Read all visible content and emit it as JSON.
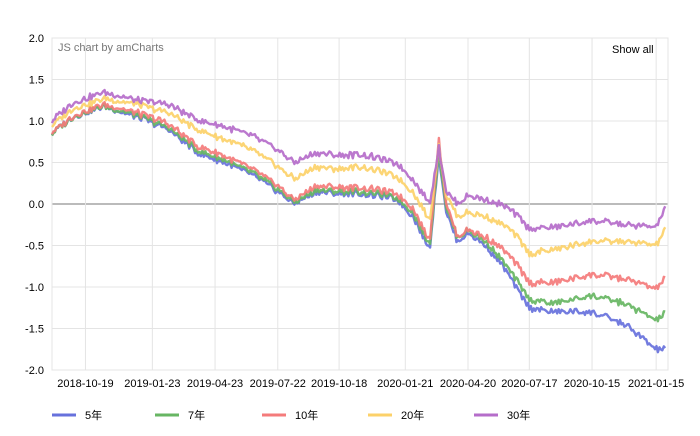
{
  "credit": "JS chart by amCharts",
  "show_all_label": "Show all",
  "colors": {
    "5年": "#6771dc",
    "7年": "#67b663",
    "10年": "#f47b7b",
    "20年": "#fcd169",
    "30年": "#b56dca",
    "grid": "#e4e4e4",
    "zero_line": "#777777"
  },
  "chart_data": {
    "type": "line",
    "title": "",
    "xlabel": "",
    "ylabel": "",
    "ylim": [
      -2.0,
      2.0
    ],
    "y_ticks": [
      "2.0",
      "1.5",
      "1.0",
      "0.5",
      "0.0",
      "-0.5",
      "-1.0",
      "-1.5",
      "-2.0"
    ],
    "x_ticks": [
      "2018-10-19",
      "2019-01-23",
      "2019-04-23",
      "2019-07-22",
      "2019-10-18",
      "2020-01-21",
      "2020-04-20",
      "2020-07-17",
      "2020-10-15",
      "2021-01-15"
    ],
    "xlim": [
      "2018-09-01",
      "2021-02-01"
    ],
    "grid": true,
    "legend_position": "bottom",
    "series": [
      {
        "name": "5年",
        "points": [
          [
            "2018-09-01",
            0.85
          ],
          [
            "2018-10-01",
            1.05
          ],
          [
            "2018-11-15",
            1.18
          ],
          [
            "2019-01-01",
            1.05
          ],
          [
            "2019-02-15",
            0.9
          ],
          [
            "2019-04-01",
            0.6
          ],
          [
            "2019-05-01",
            0.52
          ],
          [
            "2019-06-15",
            0.35
          ],
          [
            "2019-07-22",
            0.15
          ],
          [
            "2019-08-15",
            0.0
          ],
          [
            "2019-09-15",
            0.15
          ],
          [
            "2019-10-18",
            0.12
          ],
          [
            "2019-11-15",
            0.12
          ],
          [
            "2019-12-15",
            0.1
          ],
          [
            "2020-01-10",
            0.05
          ],
          [
            "2020-02-01",
            -0.15
          ],
          [
            "2020-02-25",
            -0.55
          ],
          [
            "2020-03-09",
            0.6
          ],
          [
            "2020-03-20",
            -0.1
          ],
          [
            "2020-04-05",
            -0.45
          ],
          [
            "2020-04-20",
            -0.35
          ],
          [
            "2020-05-15",
            -0.5
          ],
          [
            "2020-06-10",
            -0.75
          ],
          [
            "2020-07-01",
            -1.05
          ],
          [
            "2020-07-17",
            -1.25
          ],
          [
            "2020-08-20",
            -1.3
          ],
          [
            "2020-10-15",
            -1.3
          ],
          [
            "2020-12-01",
            -1.45
          ],
          [
            "2021-01-15",
            -1.75
          ],
          [
            "2021-01-28",
            -1.75
          ]
        ]
      },
      {
        "name": "7年",
        "points": [
          [
            "2018-09-01",
            0.85
          ],
          [
            "2018-10-01",
            1.05
          ],
          [
            "2018-11-15",
            1.18
          ],
          [
            "2019-01-01",
            1.07
          ],
          [
            "2019-02-15",
            0.92
          ],
          [
            "2019-04-01",
            0.63
          ],
          [
            "2019-05-01",
            0.55
          ],
          [
            "2019-06-15",
            0.38
          ],
          [
            "2019-07-22",
            0.18
          ],
          [
            "2019-08-15",
            0.02
          ],
          [
            "2019-09-15",
            0.17
          ],
          [
            "2019-10-18",
            0.15
          ],
          [
            "2019-11-15",
            0.15
          ],
          [
            "2019-12-15",
            0.12
          ],
          [
            "2020-01-10",
            0.07
          ],
          [
            "2020-02-01",
            -0.1
          ],
          [
            "2020-02-25",
            -0.5
          ],
          [
            "2020-03-09",
            0.65
          ],
          [
            "2020-03-20",
            -0.05
          ],
          [
            "2020-04-05",
            -0.4
          ],
          [
            "2020-04-20",
            -0.32
          ],
          [
            "2020-05-15",
            -0.45
          ],
          [
            "2020-06-10",
            -0.7
          ],
          [
            "2020-07-01",
            -0.95
          ],
          [
            "2020-07-17",
            -1.15
          ],
          [
            "2020-08-20",
            -1.2
          ],
          [
            "2020-10-15",
            -1.1
          ],
          [
            "2020-12-01",
            -1.2
          ],
          [
            "2021-01-15",
            -1.4
          ],
          [
            "2021-01-28",
            -1.32
          ]
        ]
      },
      {
        "name": "10年",
        "points": [
          [
            "2018-09-01",
            0.86
          ],
          [
            "2018-10-01",
            1.06
          ],
          [
            "2018-11-15",
            1.2
          ],
          [
            "2019-01-01",
            1.1
          ],
          [
            "2019-02-15",
            0.97
          ],
          [
            "2019-04-01",
            0.68
          ],
          [
            "2019-05-01",
            0.6
          ],
          [
            "2019-06-15",
            0.42
          ],
          [
            "2019-07-22",
            0.22
          ],
          [
            "2019-08-15",
            0.05
          ],
          [
            "2019-09-15",
            0.22
          ],
          [
            "2019-10-18",
            0.2
          ],
          [
            "2019-11-15",
            0.2
          ],
          [
            "2019-12-15",
            0.17
          ],
          [
            "2020-01-10",
            0.12
          ],
          [
            "2020-02-01",
            -0.05
          ],
          [
            "2020-02-25",
            -0.45
          ],
          [
            "2020-03-09",
            0.78
          ],
          [
            "2020-03-20",
            0.0
          ],
          [
            "2020-04-05",
            -0.4
          ],
          [
            "2020-04-20",
            -0.3
          ],
          [
            "2020-05-15",
            -0.4
          ],
          [
            "2020-06-10",
            -0.55
          ],
          [
            "2020-07-01",
            -0.75
          ],
          [
            "2020-07-17",
            -0.95
          ],
          [
            "2020-08-20",
            -0.95
          ],
          [
            "2020-10-15",
            -0.85
          ],
          [
            "2020-12-01",
            -0.9
          ],
          [
            "2021-01-15",
            -1.02
          ],
          [
            "2021-01-28",
            -0.9
          ]
        ]
      },
      {
        "name": "20年",
        "points": [
          [
            "2018-09-01",
            0.95
          ],
          [
            "2018-10-01",
            1.15
          ],
          [
            "2018-11-15",
            1.27
          ],
          [
            "2019-01-01",
            1.2
          ],
          [
            "2019-02-15",
            1.1
          ],
          [
            "2019-04-01",
            0.88
          ],
          [
            "2019-05-01",
            0.8
          ],
          [
            "2019-06-15",
            0.65
          ],
          [
            "2019-07-22",
            0.45
          ],
          [
            "2019-08-15",
            0.3
          ],
          [
            "2019-09-15",
            0.45
          ],
          [
            "2019-10-18",
            0.42
          ],
          [
            "2019-11-15",
            0.45
          ],
          [
            "2019-12-15",
            0.4
          ],
          [
            "2020-01-10",
            0.32
          ],
          [
            "2020-02-01",
            0.15
          ],
          [
            "2020-02-25",
            -0.2
          ],
          [
            "2020-03-09",
            0.7
          ],
          [
            "2020-03-20",
            0.1
          ],
          [
            "2020-04-05",
            -0.15
          ],
          [
            "2020-04-20",
            -0.1
          ],
          [
            "2020-05-15",
            -0.15
          ],
          [
            "2020-06-10",
            -0.25
          ],
          [
            "2020-07-01",
            -0.4
          ],
          [
            "2020-07-17",
            -0.6
          ],
          [
            "2020-08-20",
            -0.55
          ],
          [
            "2020-10-15",
            -0.45
          ],
          [
            "2020-12-01",
            -0.45
          ],
          [
            "2021-01-15",
            -0.5
          ],
          [
            "2021-01-28",
            -0.3
          ]
        ]
      },
      {
        "name": "30年",
        "points": [
          [
            "2018-09-01",
            1.0
          ],
          [
            "2018-10-01",
            1.22
          ],
          [
            "2018-11-15",
            1.35
          ],
          [
            "2019-01-01",
            1.25
          ],
          [
            "2019-02-15",
            1.2
          ],
          [
            "2019-04-01",
            1.0
          ],
          [
            "2019-05-01",
            0.95
          ],
          [
            "2019-06-15",
            0.82
          ],
          [
            "2019-07-22",
            0.65
          ],
          [
            "2019-08-15",
            0.5
          ],
          [
            "2019-09-15",
            0.62
          ],
          [
            "2019-10-18",
            0.58
          ],
          [
            "2019-11-15",
            0.6
          ],
          [
            "2019-12-15",
            0.55
          ],
          [
            "2020-01-10",
            0.48
          ],
          [
            "2020-02-01",
            0.3
          ],
          [
            "2020-02-25",
            0.0
          ],
          [
            "2020-03-09",
            0.68
          ],
          [
            "2020-03-20",
            0.15
          ],
          [
            "2020-04-05",
            0.0
          ],
          [
            "2020-04-20",
            0.1
          ],
          [
            "2020-05-15",
            0.05
          ],
          [
            "2020-06-10",
            -0.02
          ],
          [
            "2020-07-01",
            -0.15
          ],
          [
            "2020-07-17",
            -0.3
          ],
          [
            "2020-08-20",
            -0.28
          ],
          [
            "2020-10-15",
            -0.2
          ],
          [
            "2020-12-01",
            -0.25
          ],
          [
            "2021-01-15",
            -0.28
          ],
          [
            "2021-01-28",
            -0.05
          ]
        ]
      }
    ]
  }
}
